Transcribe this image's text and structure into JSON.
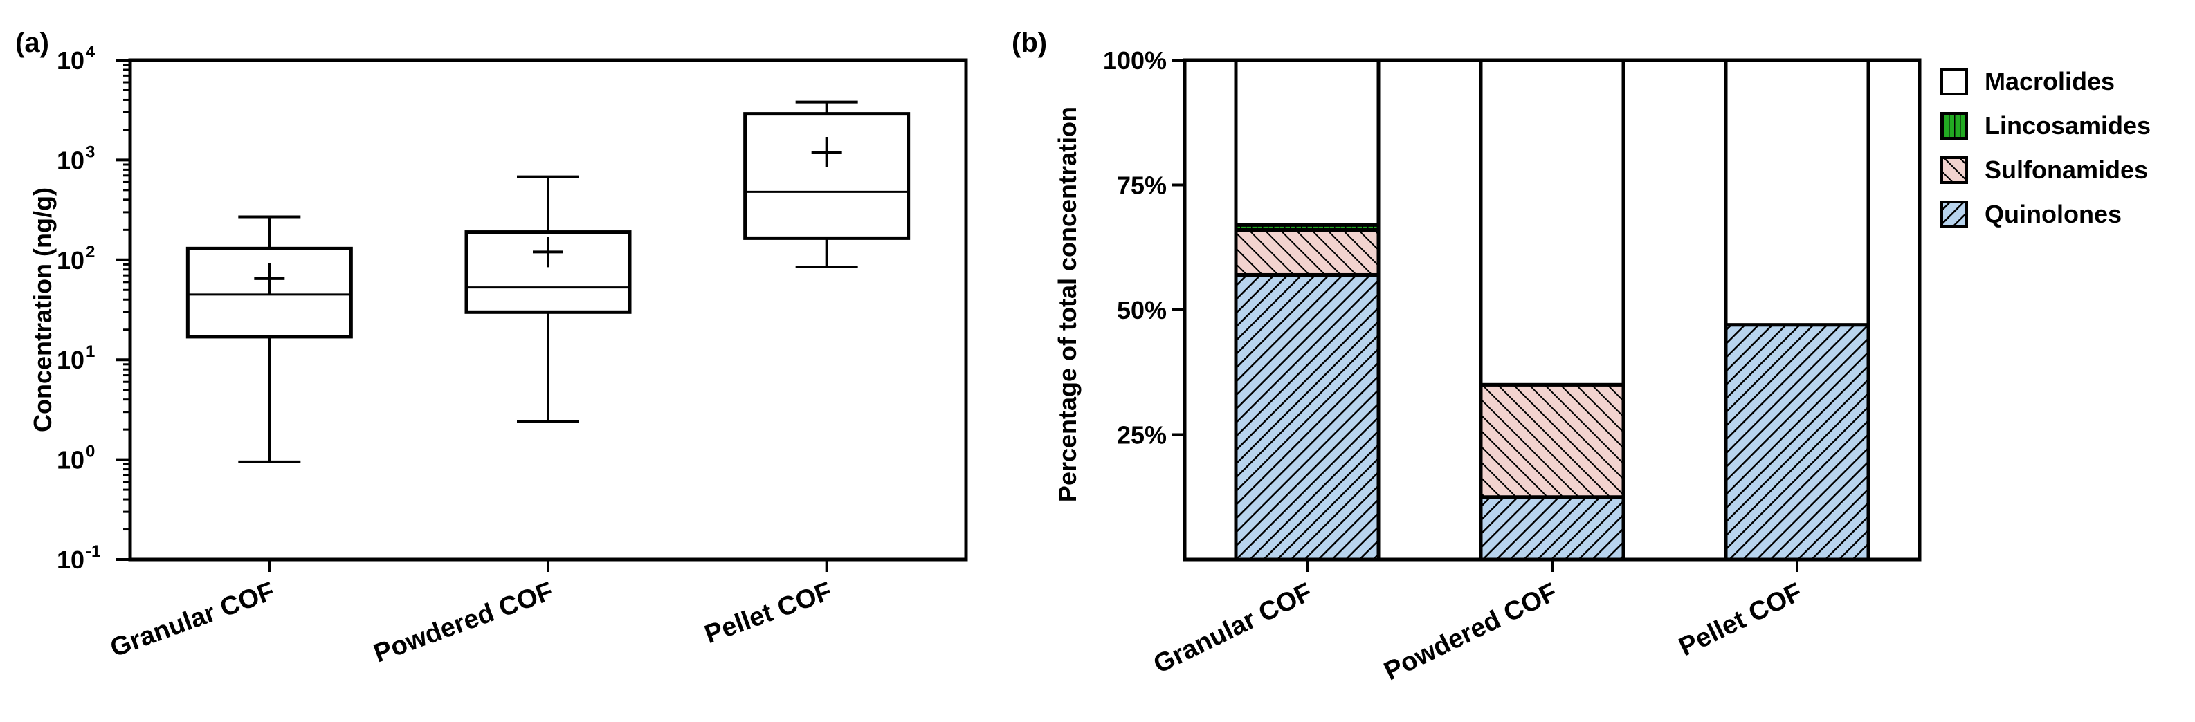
{
  "chart_data": [
    {
      "panel": "(a)",
      "type": "box",
      "ylabel": "Concentration (ng/g)",
      "yscale": "log",
      "ylim": [
        0.1,
        10000
      ],
      "yticks": [
        {
          "base": "10",
          "exp": "-1",
          "value": 0.1
        },
        {
          "base": "10",
          "exp": "0",
          "value": 1
        },
        {
          "base": "10",
          "exp": "1",
          "value": 10
        },
        {
          "base": "10",
          "exp": "2",
          "value": 100
        },
        {
          "base": "10",
          "exp": "3",
          "value": 1000
        },
        {
          "base": "10",
          "exp": "4",
          "value": 10000
        }
      ],
      "categories": [
        "Granular COF",
        "Powdered COF",
        "Pellet COF"
      ],
      "boxes": [
        {
          "category": "Granular COF",
          "min": 0.95,
          "q1": 17,
          "median": 45,
          "q3": 130,
          "max": 270,
          "mean": 65
        },
        {
          "category": "Powdered COF",
          "min": 2.4,
          "q1": 30,
          "median": 53,
          "q3": 190,
          "max": 680,
          "mean": 120
        },
        {
          "category": "Pellet COF",
          "min": 85,
          "q1": 165,
          "median": 480,
          "q3": 2900,
          "max": 3800,
          "mean": 1200
        }
      ]
    },
    {
      "panel": "(b)",
      "type": "bar",
      "stacked": true,
      "ylabel": "Percentage of total concentration",
      "ylim": [
        0,
        100
      ],
      "yticks": [
        "25%",
        "50%",
        "75%",
        "100%"
      ],
      "ytick_values": [
        25,
        50,
        75,
        100
      ],
      "categories": [
        "Granular COF",
        "Powdered COF",
        "Pellet COF"
      ],
      "series": [
        {
          "name": "Quinolones",
          "values": [
            57,
            12.5,
            47
          ],
          "color": "#b8d4ee"
        },
        {
          "name": "Sulfonamides",
          "values": [
            9,
            22.5,
            0
          ],
          "color": "#f2d3cf"
        },
        {
          "name": "Lincosamides",
          "values": [
            1,
            0,
            0
          ],
          "color": "#22aa22"
        },
        {
          "name": "Macrolides",
          "values": [
            33,
            65,
            53
          ],
          "color": "#ffffff"
        }
      ],
      "legend": [
        "Macrolides",
        "Lincosamides",
        "Sulfonamides",
        "Quinolones"
      ]
    }
  ]
}
